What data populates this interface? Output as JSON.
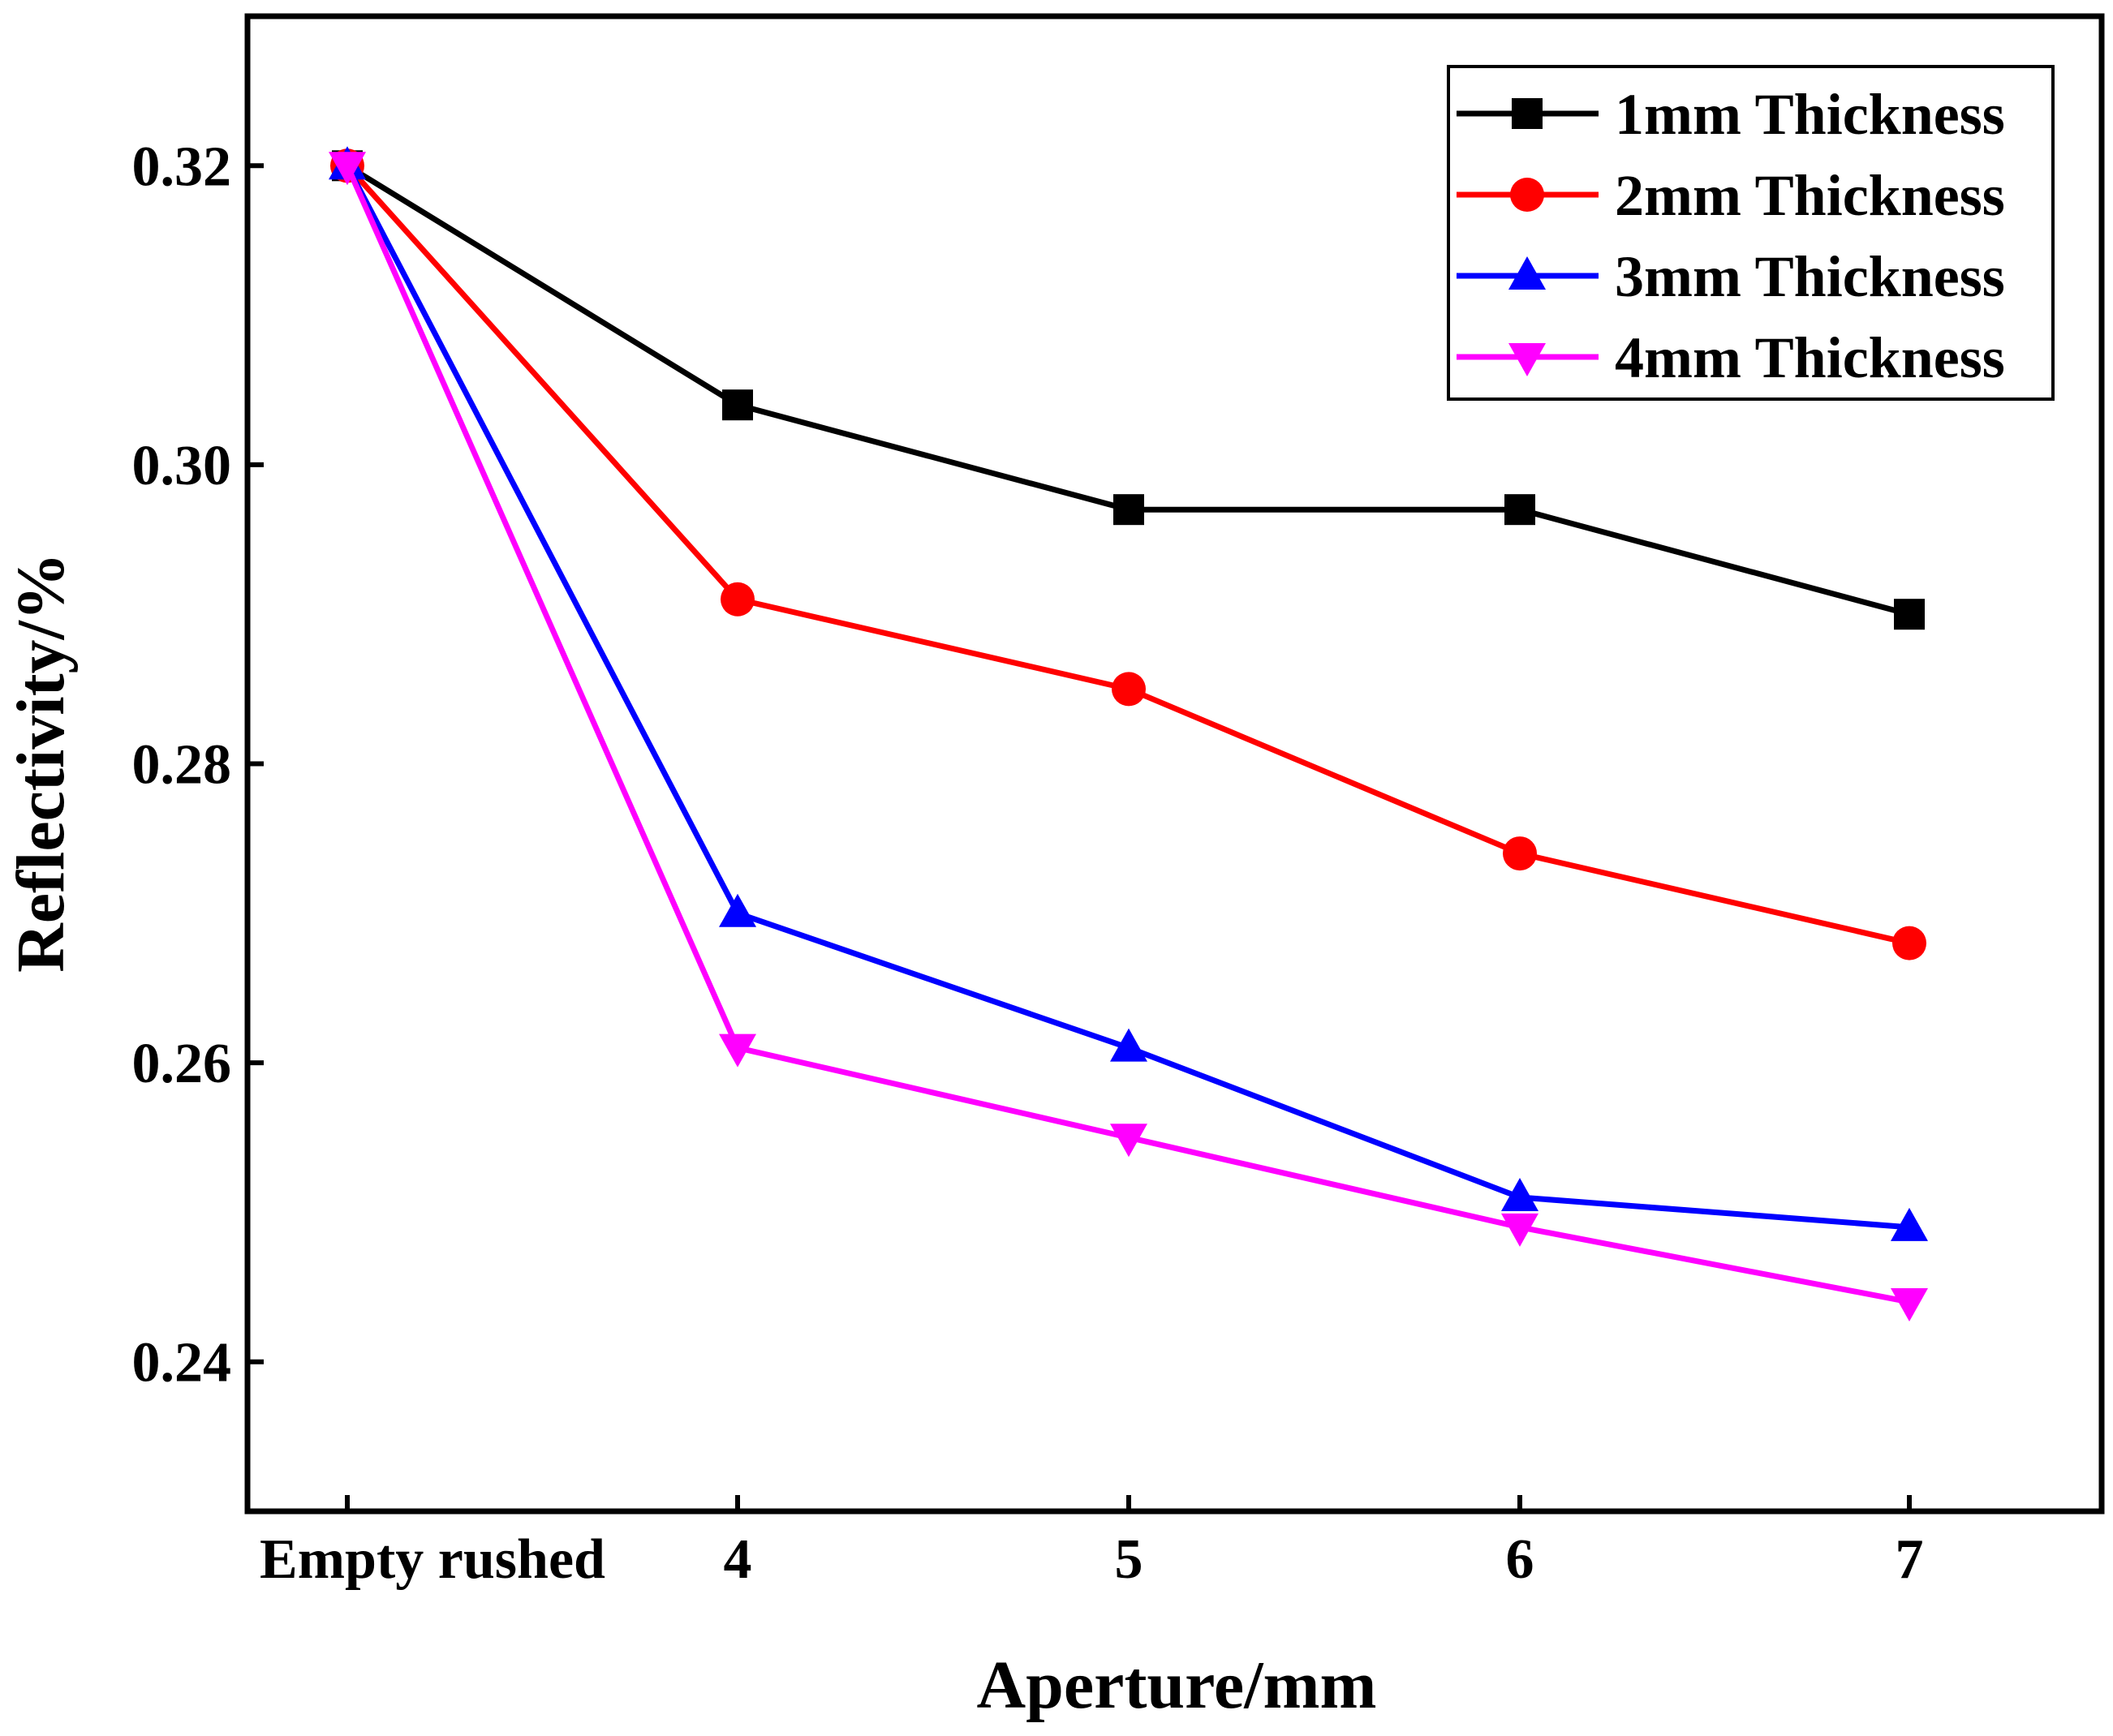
{
  "chart_data": {
    "type": "line",
    "title": "",
    "xlabel": "Aperture/mm",
    "ylabel": "Reflectivity/%",
    "categories": [
      "Empty rushed",
      "4",
      "5",
      "6",
      "7"
    ],
    "ylim": [
      0.23,
      0.33
    ],
    "yticks": [
      0.24,
      0.26,
      0.28,
      0.3,
      0.32
    ],
    "ytick_labels": [
      "0.24",
      "0.26",
      "0.28",
      "0.30",
      "0.32"
    ],
    "grid": false,
    "legend_position": "top-right",
    "series": [
      {
        "name": "1mm Thickness",
        "color": "#000000",
        "marker": "square",
        "values": [
          0.32,
          0.304,
          0.297,
          0.297,
          0.29
        ]
      },
      {
        "name": "2mm Thickness",
        "color": "#ff0000",
        "marker": "circle",
        "values": [
          0.32,
          0.291,
          0.285,
          0.274,
          0.268
        ]
      },
      {
        "name": "3mm Thickness",
        "color": "#0000ff",
        "marker": "triangle-up",
        "values": [
          0.32,
          0.27,
          0.261,
          0.251,
          0.249
        ]
      },
      {
        "name": "4mm Thickness",
        "color": "#ff00ff",
        "marker": "triangle-down",
        "values": [
          0.32,
          0.261,
          0.255,
          0.249,
          0.244
        ]
      }
    ]
  }
}
